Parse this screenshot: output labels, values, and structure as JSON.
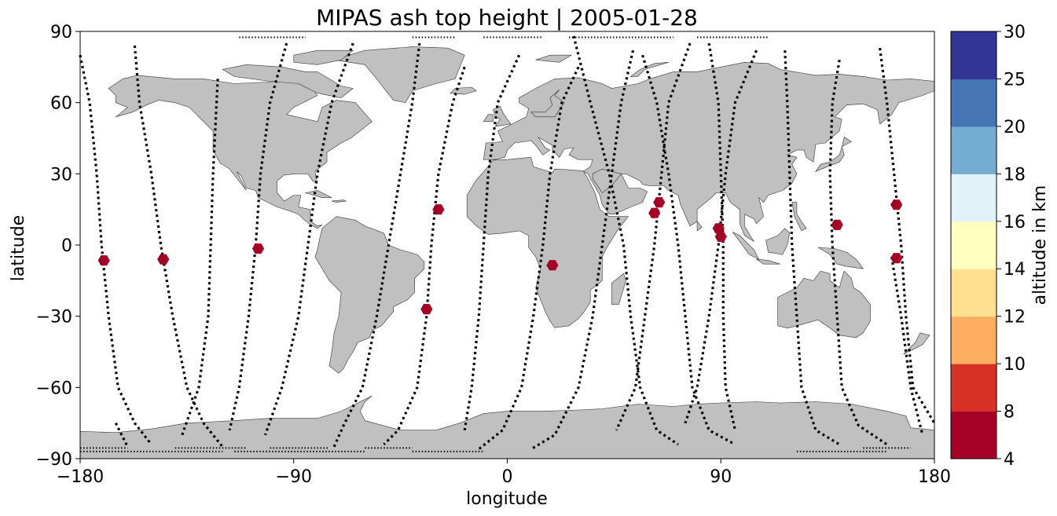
{
  "figure": {
    "title": "MIPAS ash top height | 2005-01-28",
    "xlabel": "longitude",
    "ylabel": "latitude",
    "land_color": "#c0c0c0",
    "track_color": "#000000",
    "marker_color": "#a50026"
  },
  "chart_data": {
    "type": "scatter",
    "xlim": [
      -180,
      180
    ],
    "ylim": [
      -90,
      90
    ],
    "x_ticks": [
      {
        "value": -180,
        "label": "−180"
      },
      {
        "value": -90,
        "label": "−90"
      },
      {
        "value": 0,
        "label": "0"
      },
      {
        "value": 90,
        "label": "90"
      },
      {
        "value": 180,
        "label": "180"
      }
    ],
    "y_ticks": [
      {
        "value": 90,
        "label": "90"
      },
      {
        "value": 60,
        "label": "60"
      },
      {
        "value": 30,
        "label": "30"
      },
      {
        "value": 0,
        "label": "0"
      },
      {
        "value": -30,
        "label": "−30"
      },
      {
        "value": -60,
        "label": "−60"
      },
      {
        "value": -90,
        "label": "−90"
      }
    ],
    "ash_detections": [
      {
        "lon": -170,
        "lat": -6.5
      },
      {
        "lon": -145,
        "lat": -6
      },
      {
        "lon": -105,
        "lat": -1.5
      },
      {
        "lon": -29,
        "lat": 15
      },
      {
        "lon": -34,
        "lat": -27
      },
      {
        "lon": 19,
        "lat": -8.5
      },
      {
        "lon": 62,
        "lat": 13.5
      },
      {
        "lon": 64,
        "lat": 18
      },
      {
        "lon": 89,
        "lat": 7
      },
      {
        "lon": 90,
        "lat": 3.5
      },
      {
        "lon": 139,
        "lat": 8.5
      },
      {
        "lon": 164,
        "lat": 17
      },
      {
        "lon": 164,
        "lat": -5.5
      }
    ],
    "orbit_tracks": [
      [
        [
          -180,
          80
        ],
        [
          -176,
          60
        ],
        [
          -173,
          30
        ],
        [
          -171,
          0
        ],
        [
          -168,
          -30
        ],
        [
          -164,
          -60
        ],
        [
          -157,
          -75
        ],
        [
          -150,
          -84
        ]
      ],
      [
        [
          -157,
          84
        ],
        [
          -155,
          60
        ],
        [
          -150,
          30
        ],
        [
          -146,
          0
        ],
        [
          -141,
          -30
        ],
        [
          -135,
          -60
        ],
        [
          -128,
          -75
        ],
        [
          -120,
          -85
        ]
      ],
      [
        [
          -165,
          -75
        ],
        [
          -160,
          -85
        ]
      ],
      [
        [
          -122,
          70
        ],
        [
          -124,
          30
        ],
        [
          -125,
          0
        ],
        [
          -126,
          -30
        ],
        [
          -130,
          -60
        ],
        [
          -137,
          -80
        ]
      ],
      [
        [
          -93,
          85
        ],
        [
          -100,
          60
        ],
        [
          -104,
          30
        ],
        [
          -106,
          0
        ],
        [
          -109,
          -30
        ],
        [
          -113,
          -60
        ],
        [
          -117,
          -78
        ]
      ],
      [
        [
          -65,
          85
        ],
        [
          -74,
          60
        ],
        [
          -80,
          30
        ],
        [
          -84,
          0
        ],
        [
          -88,
          -30
        ],
        [
          -95,
          -60
        ],
        [
          -102,
          -80
        ]
      ],
      [
        [
          -37,
          85
        ],
        [
          -40,
          60
        ],
        [
          -45,
          30
        ],
        [
          -50,
          0
        ],
        [
          -55,
          -30
        ],
        [
          -61,
          -60
        ],
        [
          -69,
          -76
        ],
        [
          -73,
          -85
        ]
      ],
      [
        [
          -18,
          75
        ],
        [
          -23,
          60
        ],
        [
          -29,
          30
        ],
        [
          -32,
          0
        ],
        [
          -34,
          -30
        ],
        [
          -38,
          -60
        ],
        [
          -46,
          -78
        ],
        [
          -52,
          -84
        ]
      ],
      [
        [
          5,
          80
        ],
        [
          -4,
          60
        ],
        [
          -8,
          30
        ],
        [
          -10,
          0
        ],
        [
          -12,
          -30
        ],
        [
          -15,
          -60
        ],
        [
          -18,
          -78
        ]
      ],
      [
        [
          30,
          75
        ],
        [
          23,
          60
        ],
        [
          18,
          30
        ],
        [
          15,
          0
        ],
        [
          11,
          -30
        ],
        [
          6,
          -60
        ],
        [
          -2,
          -78
        ],
        [
          -12,
          -86
        ]
      ],
      [
        [
          53,
          82
        ],
        [
          48,
          60
        ],
        [
          44,
          30
        ],
        [
          40,
          0
        ],
        [
          36,
          -30
        ],
        [
          30,
          -60
        ],
        [
          20,
          -80
        ],
        [
          10,
          -86
        ]
      ],
      [
        [
          28,
          88
        ],
        [
          35,
          60
        ],
        [
          43,
          30
        ],
        [
          49,
          0
        ],
        [
          52,
          -30
        ],
        [
          56,
          -60
        ],
        [
          63,
          -78
        ],
        [
          72,
          -84
        ]
      ],
      [
        [
          77,
          85
        ],
        [
          68,
          60
        ],
        [
          65,
          30
        ],
        [
          62,
          0
        ],
        [
          58,
          -30
        ],
        [
          54,
          -60
        ],
        [
          46,
          -78
        ]
      ],
      [
        [
          57,
          80
        ],
        [
          63,
          60
        ],
        [
          68,
          30
        ],
        [
          72,
          0
        ],
        [
          75,
          -30
        ],
        [
          78,
          -60
        ],
        [
          85,
          -78
        ],
        [
          96,
          -84
        ]
      ],
      [
        [
          85,
          85
        ],
        [
          89,
          60
        ],
        [
          90,
          30
        ],
        [
          91,
          0
        ],
        [
          91,
          -30
        ],
        [
          92,
          -60
        ],
        [
          96,
          -78
        ]
      ],
      [
        [
          105,
          82
        ],
        [
          96,
          60
        ],
        [
          92,
          30
        ],
        [
          89,
          0
        ],
        [
          85,
          -30
        ],
        [
          80,
          -60
        ],
        [
          75,
          -75
        ]
      ],
      [
        [
          117,
          82
        ],
        [
          118,
          60
        ],
        [
          119,
          30
        ],
        [
          120,
          0
        ],
        [
          122,
          -30
        ],
        [
          124,
          -60
        ],
        [
          130,
          -78
        ],
        [
          140,
          -84
        ]
      ],
      [
        [
          140,
          78
        ],
        [
          137,
          60
        ],
        [
          136,
          30
        ],
        [
          137,
          0
        ],
        [
          139,
          -30
        ],
        [
          141,
          -60
        ],
        [
          148,
          -76
        ],
        [
          160,
          -84
        ]
      ],
      [
        [
          157,
          83
        ],
        [
          160,
          60
        ],
        [
          163,
          30
        ],
        [
          166,
          0
        ],
        [
          168,
          -30
        ],
        [
          171,
          -60
        ],
        [
          180,
          -75
        ]
      ],
      [
        [
          162,
          -5
        ],
        [
          166,
          -30
        ],
        [
          170,
          -60
        ],
        [
          175,
          -80
        ]
      ]
    ],
    "polar_dots": [
      {
        "lat": 87.5,
        "lon_ranges": [
          [
            -113,
            -85
          ],
          [
            -40,
            -22
          ],
          [
            -10,
            15
          ],
          [
            26,
            70
          ],
          [
            80,
            110
          ]
        ]
      },
      {
        "lat": -87,
        "lon_ranges": [
          [
            -180,
            -120
          ],
          [
            -115,
            -60
          ],
          [
            -40,
            -10
          ],
          [
            122,
            160
          ]
        ]
      },
      {
        "lat": -85.5,
        "lon_ranges": [
          [
            -180,
            -160
          ],
          [
            -140,
            -110
          ],
          [
            -100,
            -75
          ],
          [
            -60,
            -40
          ],
          [
            150,
            170
          ]
        ]
      }
    ],
    "colorbar": {
      "label": "altitude in km",
      "levels": [
        "4",
        "8",
        "10",
        "12",
        "14",
        "16",
        "18",
        "20",
        "25",
        "30"
      ],
      "colors": [
        "#a50026",
        "#d73027",
        "#f46d43",
        "#fdae61",
        "#fee090",
        "#ffffbf",
        "#e0f3f8",
        "#abd9e9",
        "#74add1",
        "#4575b4",
        "#313695"
      ]
    }
  }
}
